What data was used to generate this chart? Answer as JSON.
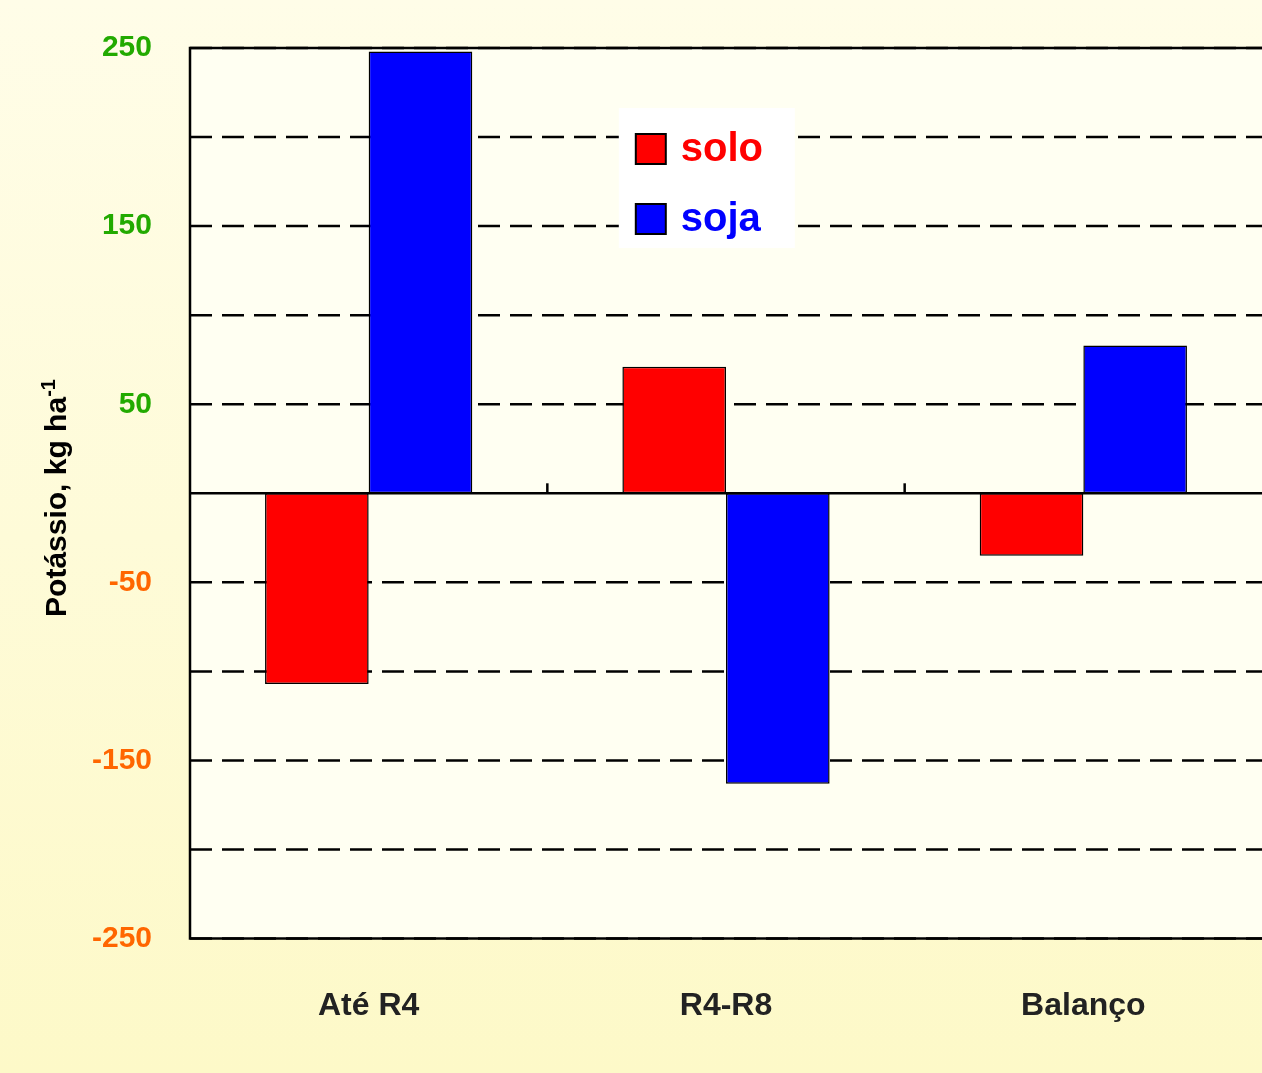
{
  "chart_data": {
    "type": "bar",
    "ylabel": "Potássio, kg ha$^{-1}$",
    "categories": [
      "Até R4",
      "R4-R8",
      "Balanço"
    ],
    "series": [
      {
        "name": "solo",
        "color": "#ff0000",
        "values": [
          -107,
          71,
          -35
        ]
      },
      {
        "name": "soja",
        "color": "#0000ff",
        "values": [
          248,
          -163,
          83
        ]
      }
    ],
    "ylim": [
      -250,
      250
    ],
    "yticks": [
      -250,
      {
        "value": -200,
        "label": null
      },
      -150,
      {
        "value": -100,
        "label": null
      },
      -50,
      {
        "value": 0,
        "label": null
      },
      50,
      {
        "value": 100,
        "label": null
      },
      150,
      {
        "value": 200,
        "label": null
      },
      250
    ],
    "grid": "y",
    "legend": "top"
  }
}
